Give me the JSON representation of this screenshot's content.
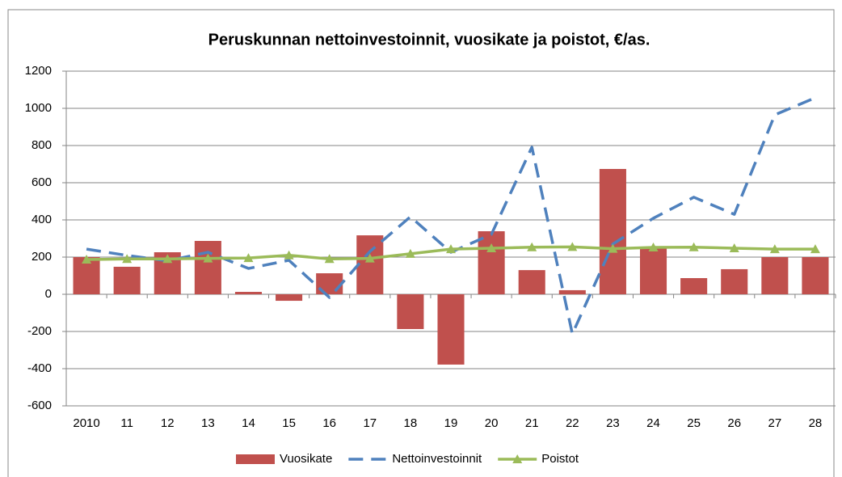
{
  "chart_data": {
    "type": "bar_line",
    "title": "Peruskunnan nettoinvestoinnit, vuosikate ja poistot, €/as.",
    "categories": [
      "2010",
      "11",
      "12",
      "13",
      "14",
      "15",
      "16",
      "17",
      "18",
      "19",
      "20",
      "21",
      "22",
      "23",
      "24",
      "25",
      "26",
      "27",
      "28"
    ],
    "series": [
      {
        "name": "Vuosikate",
        "type": "bar",
        "color": "#c0504d",
        "values": [
          200,
          148,
          226,
          287,
          13,
          -35,
          113,
          317,
          -187,
          -378,
          339,
          130,
          22,
          674,
          248,
          87,
          135,
          200,
          200
        ]
      },
      {
        "name": "Nettoinvestoinnit",
        "type": "dashed-line",
        "color": "#4f81bd",
        "values": [
          243,
          209,
          180,
          226,
          139,
          183,
          -17,
          230,
          417,
          226,
          322,
          791,
          -213,
          270,
          409,
          522,
          430,
          965,
          1057
        ]
      },
      {
        "name": "Poistot",
        "type": "line",
        "color": "#9bbb59",
        "values": [
          187,
          190,
          190,
          193,
          195,
          210,
          190,
          193,
          218,
          243,
          248,
          253,
          255,
          245,
          252,
          253,
          248,
          243,
          243
        ]
      }
    ],
    "ylim": [
      -600,
      1200
    ],
    "yticks": [
      -600,
      -400,
      -200,
      0,
      200,
      400,
      600,
      800,
      1000,
      1200
    ],
    "grid": true,
    "legend": "bottom"
  }
}
